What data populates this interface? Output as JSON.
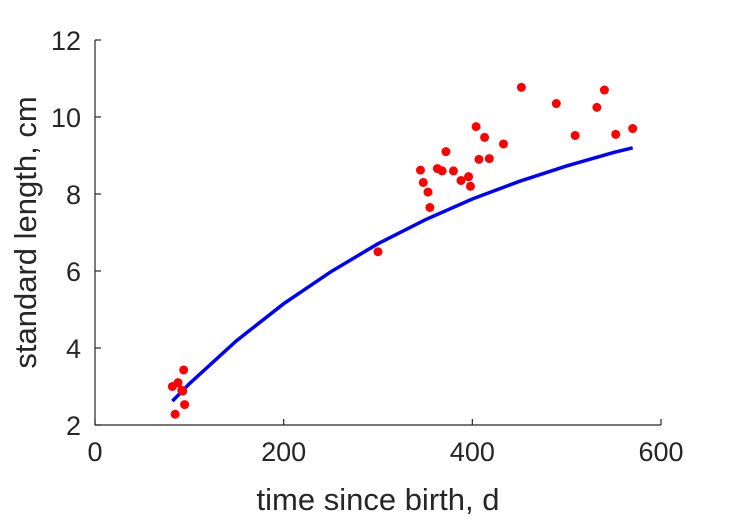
{
  "chart_data": {
    "type": "scatter",
    "title": "",
    "xlabel": "time since birth, d",
    "ylabel": "standard length, cm",
    "xlim": [
      0,
      600
    ],
    "ylim": [
      2,
      12
    ],
    "xticks": [
      "0",
      "200",
      "400",
      "600"
    ],
    "yticks": [
      "2",
      "4",
      "6",
      "8",
      "10",
      "12"
    ],
    "grid": false,
    "legend": "none",
    "colors": {
      "points": "#ff0000",
      "fit": "#0000ff",
      "axis": "#262626"
    },
    "series": [
      {
        "type": "scatter",
        "x": [
          82,
          85,
          88,
          93,
          94,
          95,
          92,
          300,
          345,
          348,
          353,
          355,
          363,
          368,
          372,
          380,
          388,
          396,
          398,
          404,
          407,
          413,
          418,
          433,
          452,
          489,
          509,
          532,
          540,
          552,
          570
        ],
        "y": [
          3.0,
          2.28,
          3.1,
          2.88,
          3.43,
          2.53,
          2.9,
          6.5,
          8.62,
          8.3,
          8.05,
          7.65,
          8.66,
          8.6,
          9.1,
          8.6,
          8.35,
          8.45,
          8.2,
          9.75,
          8.9,
          9.47,
          8.92,
          9.3,
          10.77,
          10.35,
          9.52,
          10.25,
          10.7,
          9.55,
          9.7
        ]
      },
      {
        "type": "line",
        "x": [
          82,
          100,
          150,
          200,
          250,
          300,
          350,
          400,
          450,
          500,
          550,
          570
        ],
        "y": [
          2.62,
          3.07,
          4.19,
          5.15,
          5.98,
          6.71,
          7.33,
          7.87,
          8.33,
          8.73,
          9.08,
          9.2
        ]
      }
    ]
  }
}
